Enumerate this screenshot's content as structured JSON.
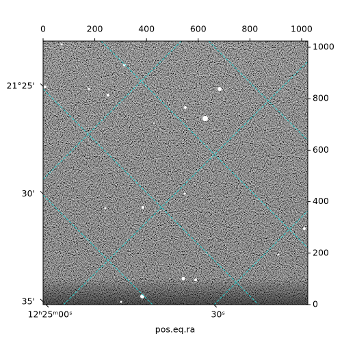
{
  "chart_data": {
    "type": "image",
    "xlabel": "pos.eq.ra",
    "xlim": [
      0,
      1024
    ],
    "ylim": [
      0,
      1024
    ],
    "xticks": [
      0,
      200,
      400,
      600,
      800,
      1000
    ],
    "yticks": [
      0,
      200,
      400,
      600,
      800,
      1000
    ],
    "ra_ticks": [
      {
        "value": 11,
        "label": "12ʰ25ᵐ00ˢ"
      },
      {
        "value": 661,
        "label": "30ˢ"
      }
    ],
    "dec_ticks": [
      {
        "value": 848,
        "label": "21°25'"
      },
      {
        "value": 430,
        "label": "30'"
      },
      {
        "value": 11,
        "label": "35'"
      }
    ],
    "grid": true,
    "grid_color": "#20d0d0"
  }
}
